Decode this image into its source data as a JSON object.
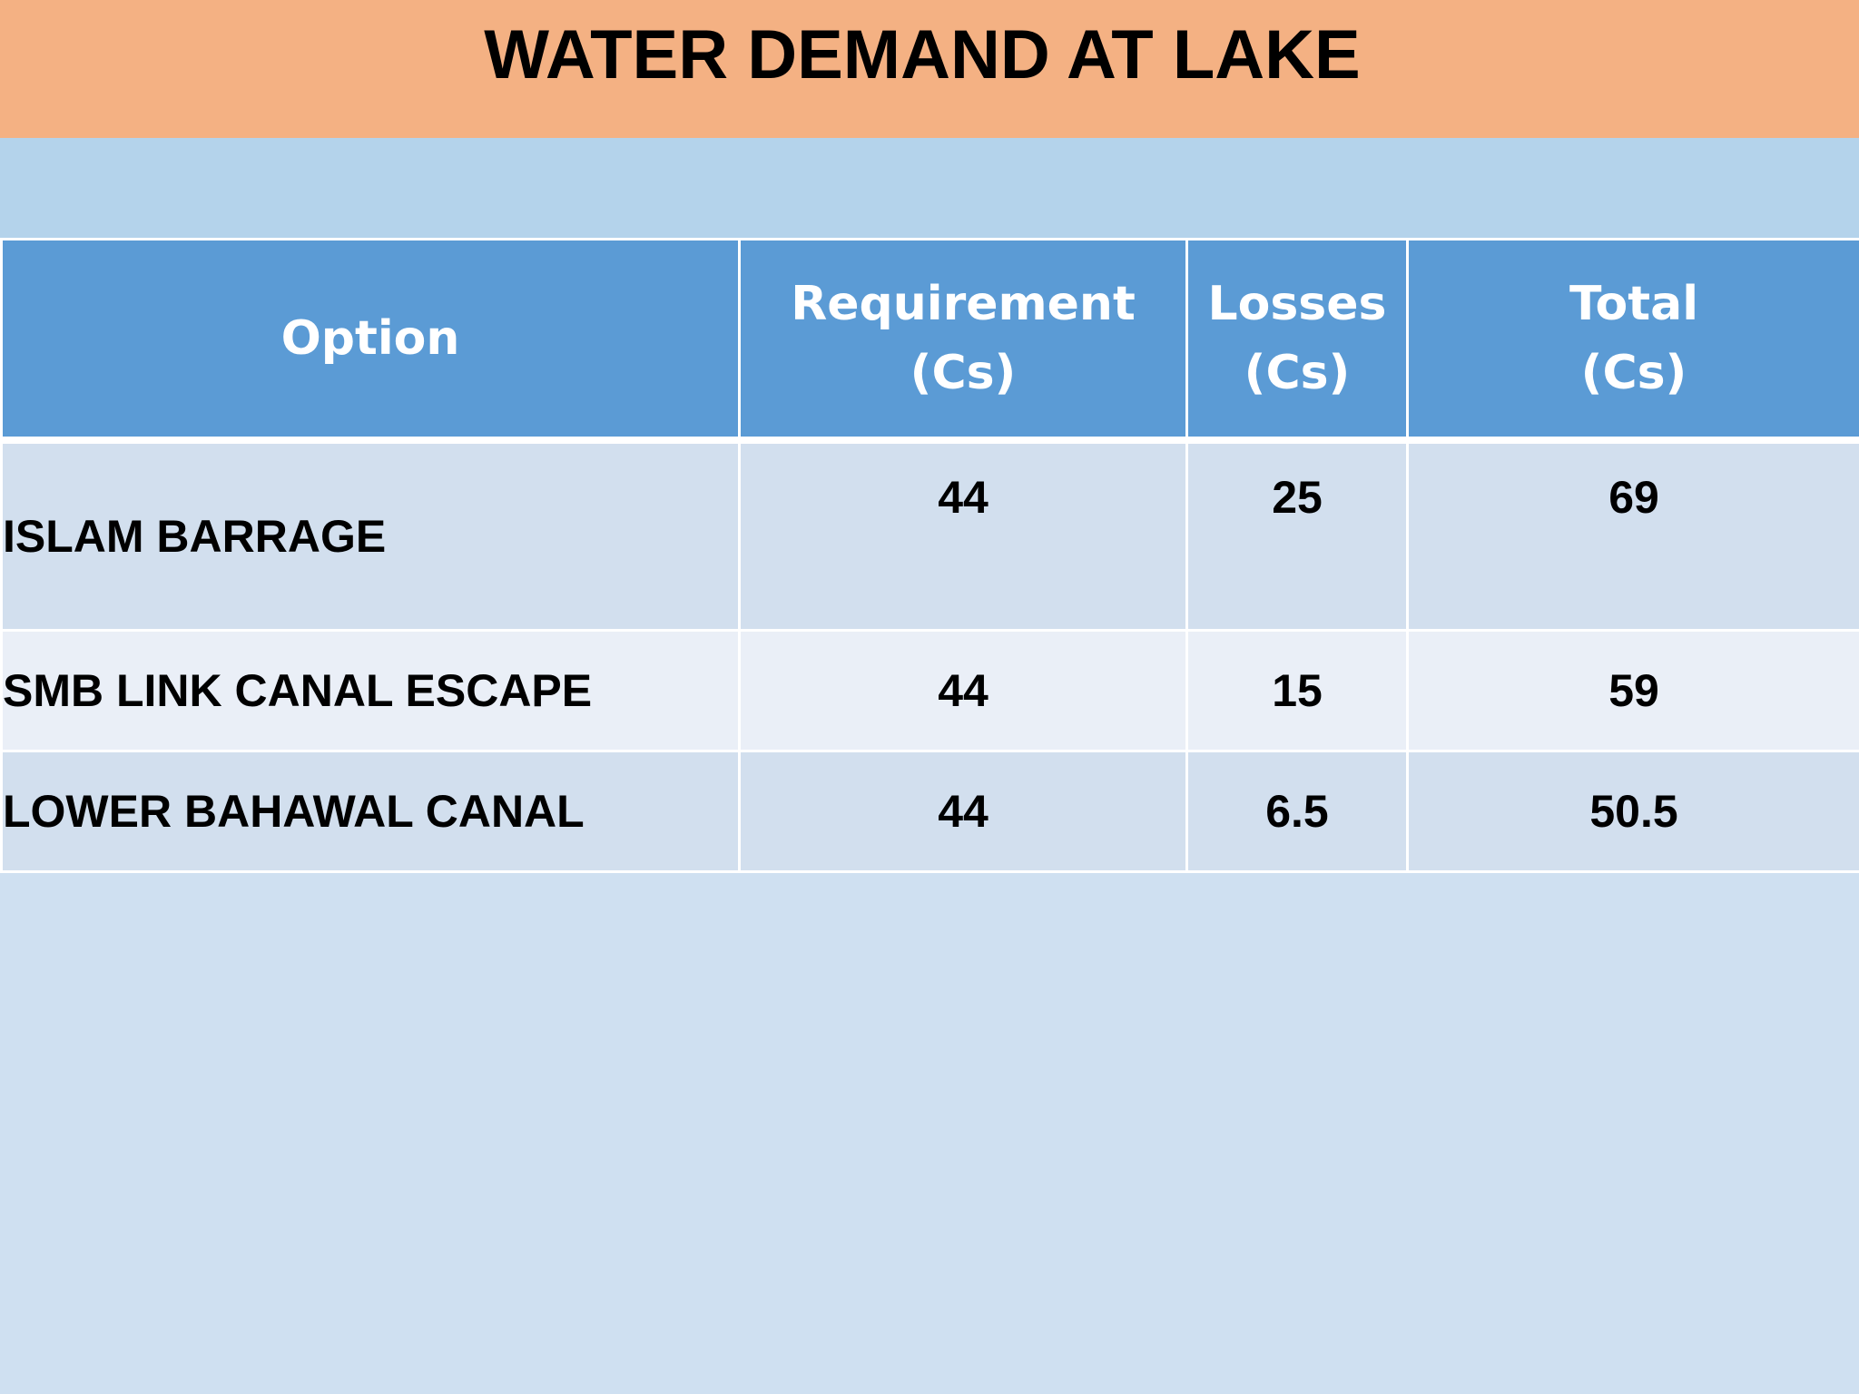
{
  "slide": {
    "title": "WATER DEMAND AT LAKE"
  },
  "table": {
    "headers": [
      {
        "line1": "Option",
        "line2": ""
      },
      {
        "line1": "Requirement",
        "line2": "(Cs)"
      },
      {
        "line1": "Losses",
        "line2": "(Cs)"
      },
      {
        "line1": "Total",
        "line2": "(Cs)"
      }
    ],
    "rows": [
      {
        "option": "ISLAM BARRAGE",
        "requirement": "44",
        "losses": "25",
        "total": "69"
      },
      {
        "option": "SMB LINK CANAL ESCAPE",
        "requirement": "44",
        "losses": "15",
        "total": "59"
      },
      {
        "option": "LOWER BAHAWAL CANAL",
        "requirement": "44",
        "losses": "6.5",
        "total": "50.5"
      }
    ]
  },
  "colors": {
    "title_bar": "#f4b183",
    "light_band": "#b4d3eb",
    "background": "#cfe0f1",
    "header_bg": "#5b9bd5",
    "row_dark": "#d2dfee",
    "row_light": "#eaeff7"
  }
}
